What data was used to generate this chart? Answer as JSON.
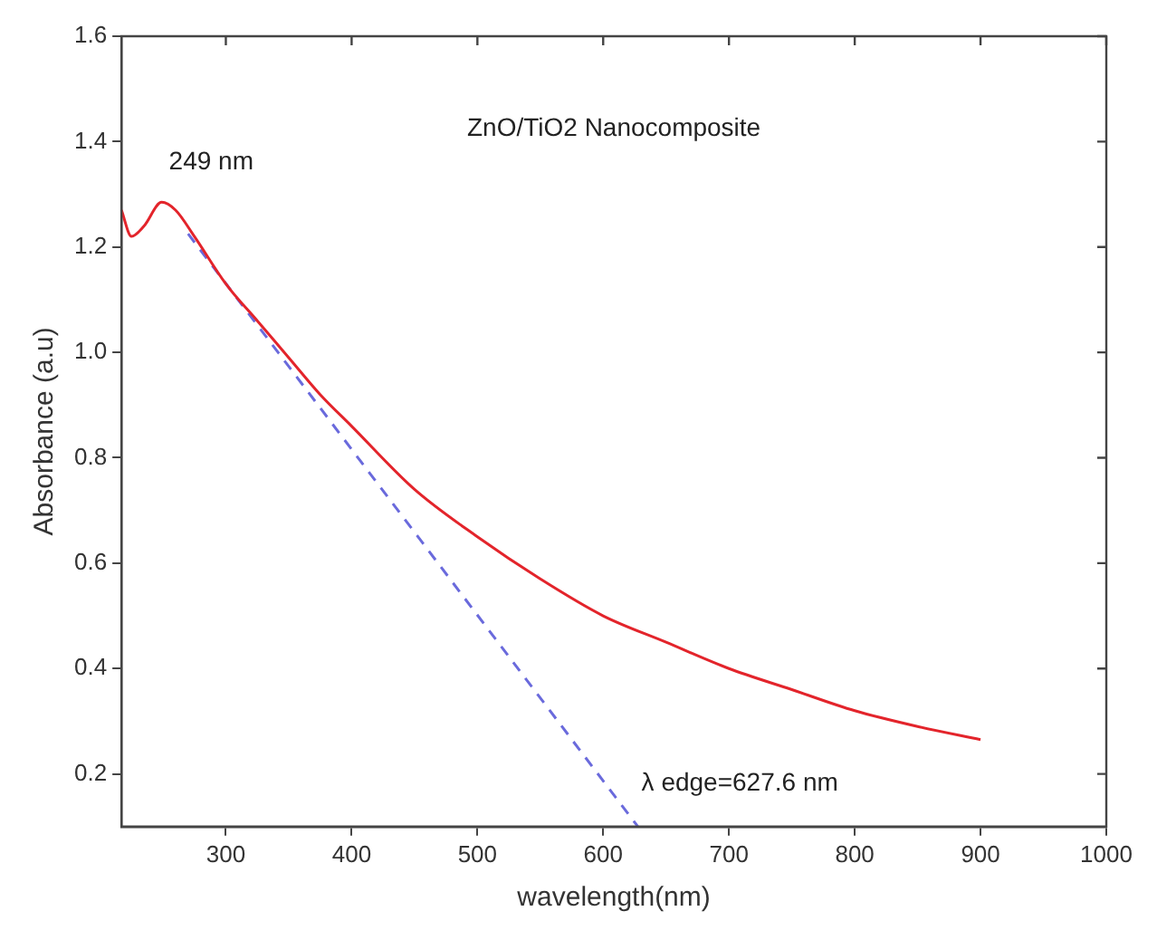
{
  "chart_data": {
    "type": "line",
    "title": "ZnO/TiO2 Nanocomposite",
    "xlabel": "wavelength(nm)",
    "ylabel": "Absorbance (a.u)",
    "xlim": [
      217,
      1000
    ],
    "xticks": [
      300,
      400,
      500,
      600,
      700,
      800,
      900,
      1000
    ],
    "ylim": [
      0.1,
      1.6
    ],
    "yticks": [
      {
        "value": 0.2,
        "label": "0.2"
      },
      {
        "value": 0.4,
        "label": "0.4"
      },
      {
        "value": 0.6,
        "label": "0.6"
      },
      {
        "value": 0.8,
        "label": "0.8"
      },
      {
        "value": 1.0,
        "label": "1.0"
      },
      {
        "value": 1.2,
        "label": "1.2"
      },
      {
        "value": 1.4,
        "label": "1.4"
      },
      {
        "value": 1.6,
        "label": "1.6"
      }
    ],
    "grid": false,
    "legend": false,
    "marker": "none",
    "series": [
      {
        "color": "#e3242b",
        "line_style": "solid",
        "x": [
          217,
          225,
          235,
          249,
          260,
          275,
          300,
          325,
          350,
          375,
          400,
          450,
          500,
          550,
          600,
          650,
          700,
          750,
          800,
          850,
          900
        ],
        "values": [
          1.27,
          1.22,
          1.24,
          1.285,
          1.27,
          1.22,
          1.13,
          1.06,
          0.99,
          0.92,
          0.86,
          0.74,
          0.65,
          0.57,
          0.5,
          0.45,
          0.4,
          0.36,
          0.32,
          0.29,
          0.265
        ]
      },
      {
        "color": "#6a6adc",
        "line_style": "dashed",
        "x": [
          270,
          627.6
        ],
        "values": [
          1.225,
          0.1
        ]
      }
    ],
    "annotations": [
      {
        "text": "249 nm",
        "x": 249,
        "y": 1.285
      },
      {
        "text": "λ edge=627.6 nm",
        "x": 627.6,
        "y": 0.1
      }
    ]
  }
}
